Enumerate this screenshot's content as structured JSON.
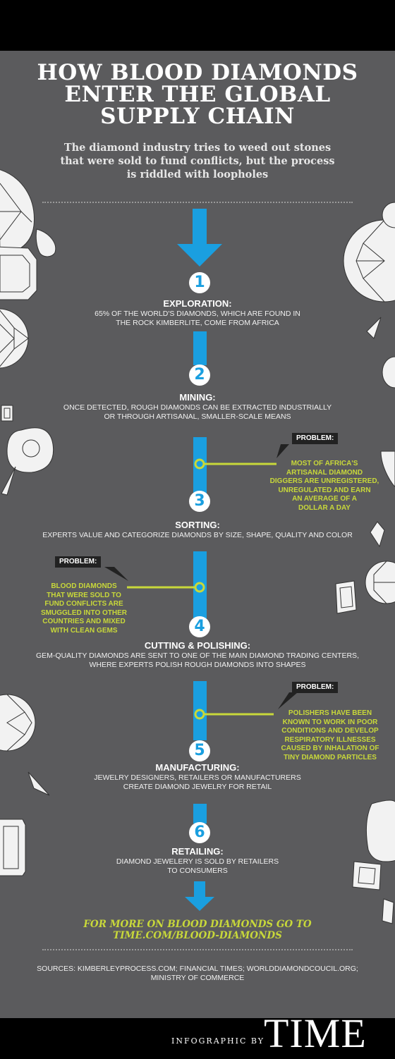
{
  "header": {
    "title_lines": [
      "HOW BLOOD DIAMONDS",
      "ENTER THE GLOBAL",
      "SUPPLY CHAIN"
    ],
    "subtitle_lines": [
      "The diamond industry tries to weed out stones",
      "that were sold to fund conflicts, but the process",
      "is riddled with loopholes"
    ]
  },
  "stages": [
    {
      "number": "1",
      "title": "EXPLORATION:",
      "desc": [
        "65% OF THE WORLD'S DIAMONDS, WHICH ARE FOUND IN",
        "THE ROCK KIMBERLITE, COME FROM AFRICA"
      ]
    },
    {
      "number": "2",
      "title": "MINING:",
      "desc": [
        "ONCE DETECTED, ROUGH DIAMONDS CAN BE EXTRACTED INDUSTRIALLY",
        "OR THROUGH ARTISANAL, SMALLER-SCALE MEANS"
      ]
    },
    {
      "number": "3",
      "title": "SORTING:",
      "desc": [
        "EXPERTS VALUE AND CATEGORIZE DIAMONDS BY SIZE, SHAPE, QUALITY AND COLOR"
      ]
    },
    {
      "number": "4",
      "title": "CUTTING & POLISHING:",
      "desc": [
        "GEM-QUALITY DIAMONDS ARE SENT TO ONE OF THE MAIN DIAMOND TRADING CENTERS,",
        "WHERE EXPERTS POLISH ROUGH DIAMONDS INTO SHAPES"
      ]
    },
    {
      "number": "5",
      "title": "MANUFACTURING:",
      "desc": [
        "JEWELRY DESIGNERS, RETAILERS OR MANUFACTURERS",
        "CREATE DIAMOND JEWELRY FOR RETAIL"
      ]
    },
    {
      "number": "6",
      "title": "RETAILING:",
      "desc": [
        "DIAMOND JEWELERY IS SOLD BY RETAILERS",
        "TO CONSUMERS"
      ]
    }
  ],
  "problems": [
    {
      "label": "PROBLEM:",
      "text": [
        "MOST OF AFRICA'S",
        "ARTISANAL DIAMOND",
        "DIGGERS ARE UNREGISTERED,",
        "UNREGULATED AND EARN",
        "AN AVERAGE OF A",
        "DOLLAR A DAY"
      ]
    },
    {
      "label": "PROBLEM:",
      "text": [
        "BLOOD DIAMONDS",
        "THAT WERE SOLD TO",
        "FUND CONFLICTS ARE",
        "SMUGGLED INTO OTHER",
        "COUNTRIES AND MIXED",
        "WITH CLEAN GEMS"
      ]
    },
    {
      "label": "PROBLEM:",
      "text": [
        "POLISHERS HAVE BEEN",
        "KNOWN TO WORK IN POOR",
        "CONDITIONS AND DEVELOP",
        "RESPIRATORY ILLNESSES",
        "CAUSED BY INHALATION OF",
        "TINY DIAMOND PARTICLES"
      ]
    }
  ],
  "footer": {
    "link_lines": [
      "FOR MORE ON BLOOD DIAMONDS GO TO",
      "TIME.COM/BLOOD-DIAMONDS"
    ],
    "sources_lines": [
      "SOURCES: KIMBERLEYPROCESS.COM; FINANCIAL TIMES; WORLDDIAMONDCOUCIL.ORG;",
      "MINISTRY OF COMMERCE"
    ],
    "byline": "INFOGRAPHIC BY",
    "brand": "TIME"
  },
  "colors": {
    "background": "#5b5b5d",
    "accent_blue": "#1a9fe0",
    "problem_green": "#c8d83a",
    "bar_black": "#000000"
  }
}
